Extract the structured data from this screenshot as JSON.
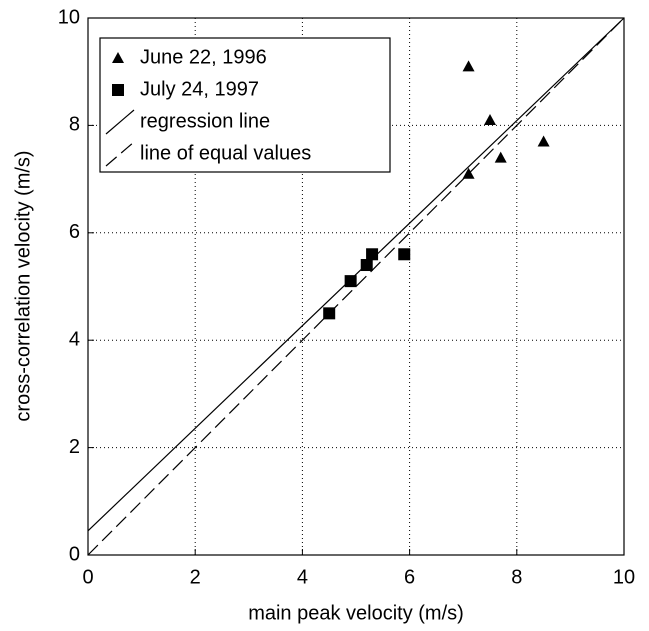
{
  "chart_data": {
    "type": "scatter",
    "x_label": "main peak velocity (m/s)",
    "y_label": "cross-correlation velocity (m/s)",
    "xlim": [
      0,
      10
    ],
    "ylim": [
      0,
      10
    ],
    "xticks": [
      0,
      2,
      4,
      6,
      8,
      10
    ],
    "yticks": [
      0,
      2,
      4,
      6,
      8,
      10
    ],
    "grid": true,
    "legend": "upper left",
    "series": [
      {
        "name": "June 22, 1996",
        "color": "#000000",
        "marker": "triangle",
        "x": [
          7.1,
          7.5,
          8.5,
          7.7,
          7.1
        ],
        "values": [
          9.1,
          8.1,
          7.7,
          7.4,
          7.1
        ]
      },
      {
        "name": "July 24, 1997",
        "color": "#000000",
        "marker": "square",
        "x": [
          4.5,
          4.9,
          5.2,
          5.3,
          5.9
        ],
        "values": [
          4.5,
          5.1,
          5.4,
          5.6,
          5.6
        ]
      },
      {
        "name": "regression line",
        "color": "#000000",
        "line_style": "solid",
        "x": [
          0,
          10
        ],
        "values": [
          0.45,
          10
        ]
      },
      {
        "name": "line of equal values",
        "color": "#000000",
        "line_style": "dashed",
        "x": [
          0,
          10
        ],
        "values": [
          0,
          10
        ]
      }
    ]
  }
}
